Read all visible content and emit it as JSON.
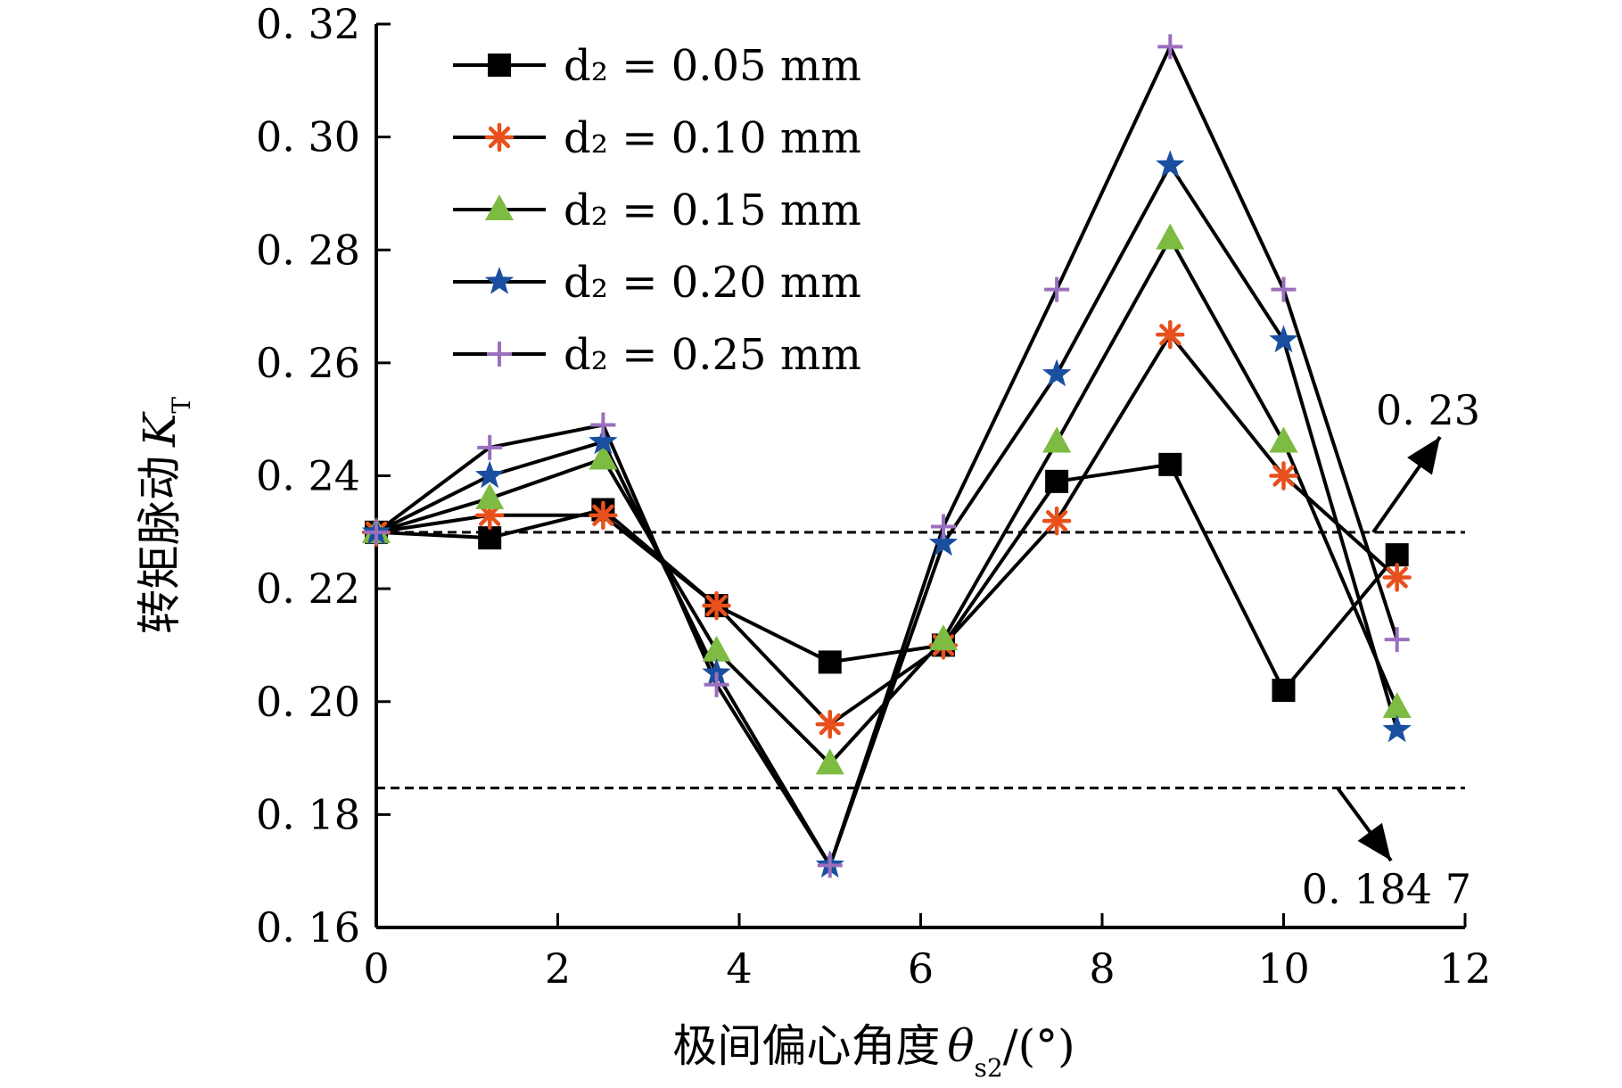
{
  "chart_data": {
    "type": "line",
    "xlabel_prefix": "极间偏心角度",
    "xlabel_symbol": "θ",
    "xlabel_sub": "s2",
    "xlabel_suffix": "/(°)",
    "ylabel_prefix": "转矩脉动",
    "ylabel_symbol": "K",
    "ylabel_sub": "T",
    "xlim": [
      0,
      12
    ],
    "ylim": [
      0.16,
      0.32
    ],
    "xticks": [
      0,
      2,
      4,
      6,
      8,
      10,
      12
    ],
    "xtick_labels": [
      "0",
      "2",
      "4",
      "6",
      "8",
      "10",
      "12"
    ],
    "yticks": [
      0.16,
      0.18,
      0.2,
      0.22,
      0.24,
      0.26,
      0.28,
      0.3,
      0.32
    ],
    "ytick_labels": [
      "0. 16",
      "0. 18",
      "0. 20",
      "0. 22",
      "0. 24",
      "0. 26",
      "0. 28",
      "0. 30",
      "0. 32"
    ],
    "grid": false,
    "legend_position": "top-left",
    "x": [
      0,
      1.25,
      2.5,
      3.75,
      5,
      6.25,
      7.5,
      8.75,
      10,
      11.25
    ],
    "series": [
      {
        "name": "d₂ = 0.05 mm",
        "marker": "square",
        "color": "#000000",
        "values": [
          0.23,
          0.229,
          0.234,
          0.217,
          0.207,
          0.21,
          0.239,
          0.242,
          0.202,
          0.226
        ]
      },
      {
        "name": "d₂ = 0.10 mm",
        "marker": "asterisk",
        "color": "#e8501c",
        "values": [
          0.23,
          0.233,
          0.233,
          0.217,
          0.196,
          0.21,
          0.232,
          0.265,
          0.24,
          0.222
        ]
      },
      {
        "name": "d₂ = 0.15 mm",
        "marker": "triangle",
        "color": "#7dbb42",
        "values": [
          0.23,
          0.236,
          0.243,
          0.209,
          0.189,
          0.211,
          0.246,
          0.282,
          0.246,
          0.199
        ]
      },
      {
        "name": "d₂ = 0.20 mm",
        "marker": "star",
        "color": "#1a4fa0",
        "values": [
          0.23,
          0.24,
          0.246,
          0.205,
          0.171,
          0.228,
          0.258,
          0.295,
          0.264,
          0.195
        ]
      },
      {
        "name": "d₂ = 0.25 mm",
        "marker": "plus",
        "color": "#9b6fbd",
        "values": [
          0.23,
          0.245,
          0.249,
          0.203,
          0.171,
          0.231,
          0.273,
          0.316,
          0.273,
          0.211
        ]
      }
    ],
    "reference_lines": [
      {
        "value": 0.23,
        "label": "0. 23",
        "style": "dashed"
      },
      {
        "value": 0.1847,
        "label": "0. 184 7",
        "style": "dashed"
      }
    ]
  }
}
